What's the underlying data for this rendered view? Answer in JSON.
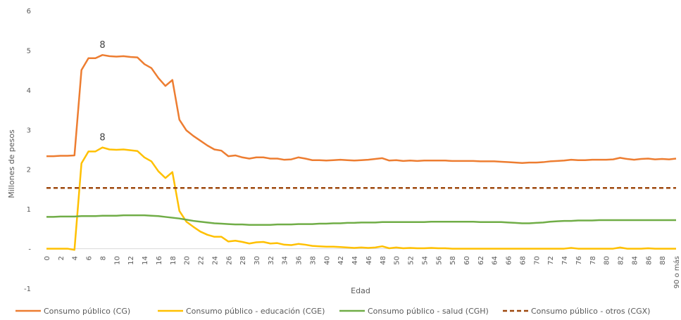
{
  "chart_data": {
    "type": "line",
    "title": "",
    "xlabel": "Edad",
    "ylabel": "Millones de pesos",
    "ylim": [
      -1,
      6
    ],
    "y_ticks": [
      {
        "value": -1,
        "label": "-1"
      },
      {
        "value": 0,
        "label": "-"
      },
      {
        "value": 1,
        "label": "1"
      },
      {
        "value": 2,
        "label": "2"
      },
      {
        "value": 3,
        "label": "3"
      },
      {
        "value": 4,
        "label": "4"
      },
      {
        "value": 5,
        "label": "5"
      },
      {
        "value": 6,
        "label": "6"
      }
    ],
    "x_tick_labels": [
      "0",
      "2",
      "4",
      "6",
      "8",
      "10",
      "12",
      "14",
      "16",
      "18",
      "20",
      "22",
      "24",
      "26",
      "28",
      "30",
      "32",
      "34",
      "36",
      "38",
      "40",
      "42",
      "44",
      "46",
      "48",
      "50",
      "52",
      "54",
      "56",
      "58",
      "60",
      "62",
      "64",
      "66",
      "68",
      "70",
      "72",
      "74",
      "76",
      "78",
      "80",
      "82",
      "84",
      "86",
      "88",
      "90 o más"
    ],
    "grid": false,
    "legend_position": "bottom",
    "series": [
      {
        "name": "Consumo público (CG)",
        "color": "#ED7D31",
        "values": [
          2.33,
          2.33,
          2.34,
          2.34,
          2.35,
          4.5,
          4.8,
          4.8,
          4.88,
          4.85,
          4.84,
          4.85,
          4.83,
          4.82,
          4.65,
          4.55,
          4.3,
          4.1,
          4.25,
          3.25,
          2.98,
          2.84,
          2.72,
          2.6,
          2.5,
          2.47,
          2.33,
          2.35,
          2.3,
          2.27,
          2.3,
          2.3,
          2.27,
          2.27,
          2.24,
          2.25,
          2.3,
          2.27,
          2.23,
          2.23,
          2.22,
          2.23,
          2.24,
          2.23,
          2.22,
          2.23,
          2.24,
          2.26,
          2.28,
          2.22,
          2.23,
          2.21,
          2.22,
          2.21,
          2.22,
          2.22,
          2.22,
          2.22,
          2.21,
          2.21,
          2.21,
          2.21,
          2.2,
          2.2,
          2.2,
          2.19,
          2.18,
          2.17,
          2.16,
          2.17,
          2.17,
          2.18,
          2.2,
          2.21,
          2.22,
          2.24,
          2.23,
          2.23,
          2.24,
          2.24,
          2.24,
          2.25,
          2.29,
          2.26,
          2.24,
          2.26,
          2.27,
          2.25,
          2.26,
          2.25,
          2.27
        ],
        "data_labels": [
          {
            "index": 8,
            "text": "8"
          }
        ]
      },
      {
        "name": "Consumo público - educación (CGE)",
        "color": "#FFC000",
        "values": [
          0.0,
          0.0,
          0.0,
          0.0,
          -0.03,
          2.15,
          2.45,
          2.45,
          2.55,
          2.5,
          2.49,
          2.5,
          2.48,
          2.46,
          2.3,
          2.2,
          1.95,
          1.78,
          1.93,
          0.95,
          0.68,
          0.55,
          0.43,
          0.35,
          0.3,
          0.3,
          0.18,
          0.2,
          0.17,
          0.13,
          0.16,
          0.17,
          0.13,
          0.14,
          0.1,
          0.09,
          0.12,
          0.1,
          0.07,
          0.06,
          0.05,
          0.05,
          0.04,
          0.03,
          0.02,
          0.03,
          0.02,
          0.03,
          0.06,
          0.01,
          0.03,
          0.01,
          0.02,
          0.01,
          0.01,
          0.02,
          0.01,
          0.01,
          0.0,
          0.0,
          0.0,
          0.0,
          0.0,
          0.0,
          0.0,
          0.0,
          0.0,
          0.0,
          0.0,
          0.0,
          0.0,
          0.0,
          0.0,
          0.0,
          0.0,
          0.02,
          0.0,
          0.0,
          0.0,
          0.0,
          0.0,
          0.0,
          0.03,
          0.0,
          0.0,
          0.0,
          0.01,
          0.0,
          0.0,
          0.0,
          0.0
        ],
        "data_labels": [
          {
            "index": 8,
            "text": "8"
          }
        ]
      },
      {
        "name": "Consumo público - salud (CGH)",
        "color": "#70AD47",
        "values": [
          0.8,
          0.8,
          0.81,
          0.81,
          0.81,
          0.82,
          0.82,
          0.82,
          0.83,
          0.83,
          0.83,
          0.84,
          0.84,
          0.84,
          0.84,
          0.83,
          0.82,
          0.8,
          0.78,
          0.76,
          0.73,
          0.7,
          0.68,
          0.66,
          0.64,
          0.63,
          0.62,
          0.61,
          0.61,
          0.6,
          0.6,
          0.6,
          0.6,
          0.61,
          0.61,
          0.61,
          0.62,
          0.62,
          0.62,
          0.63,
          0.63,
          0.64,
          0.64,
          0.65,
          0.65,
          0.66,
          0.66,
          0.66,
          0.67,
          0.67,
          0.67,
          0.67,
          0.67,
          0.67,
          0.67,
          0.68,
          0.68,
          0.68,
          0.68,
          0.68,
          0.68,
          0.68,
          0.67,
          0.67,
          0.67,
          0.67,
          0.66,
          0.65,
          0.64,
          0.64,
          0.65,
          0.66,
          0.68,
          0.69,
          0.7,
          0.7,
          0.71,
          0.71,
          0.71,
          0.72,
          0.72,
          0.72,
          0.72,
          0.72,
          0.72,
          0.72,
          0.72,
          0.72,
          0.72,
          0.72,
          0.72
        ]
      },
      {
        "name": "Consumo público - otros (CGX)",
        "color": "#9E480E",
        "dashed": true,
        "values": [
          1.53,
          1.53,
          1.53,
          1.53,
          1.53,
          1.53,
          1.53,
          1.53,
          1.53,
          1.53,
          1.53,
          1.53,
          1.53,
          1.53,
          1.53,
          1.53,
          1.53,
          1.53,
          1.53,
          1.53,
          1.53,
          1.53,
          1.53,
          1.53,
          1.53,
          1.53,
          1.53,
          1.53,
          1.53,
          1.53,
          1.53,
          1.53,
          1.53,
          1.53,
          1.53,
          1.53,
          1.53,
          1.53,
          1.53,
          1.53,
          1.53,
          1.53,
          1.53,
          1.53,
          1.53,
          1.53,
          1.53,
          1.53,
          1.53,
          1.53,
          1.53,
          1.53,
          1.53,
          1.53,
          1.53,
          1.53,
          1.53,
          1.53,
          1.53,
          1.53,
          1.53,
          1.53,
          1.53,
          1.53,
          1.53,
          1.53,
          1.53,
          1.53,
          1.53,
          1.53,
          1.53,
          1.53,
          1.53,
          1.53,
          1.53,
          1.53,
          1.53,
          1.53,
          1.53,
          1.53,
          1.53,
          1.53,
          1.53,
          1.53,
          1.53,
          1.53,
          1.53,
          1.53,
          1.53,
          1.53,
          1.53
        ]
      }
    ]
  }
}
